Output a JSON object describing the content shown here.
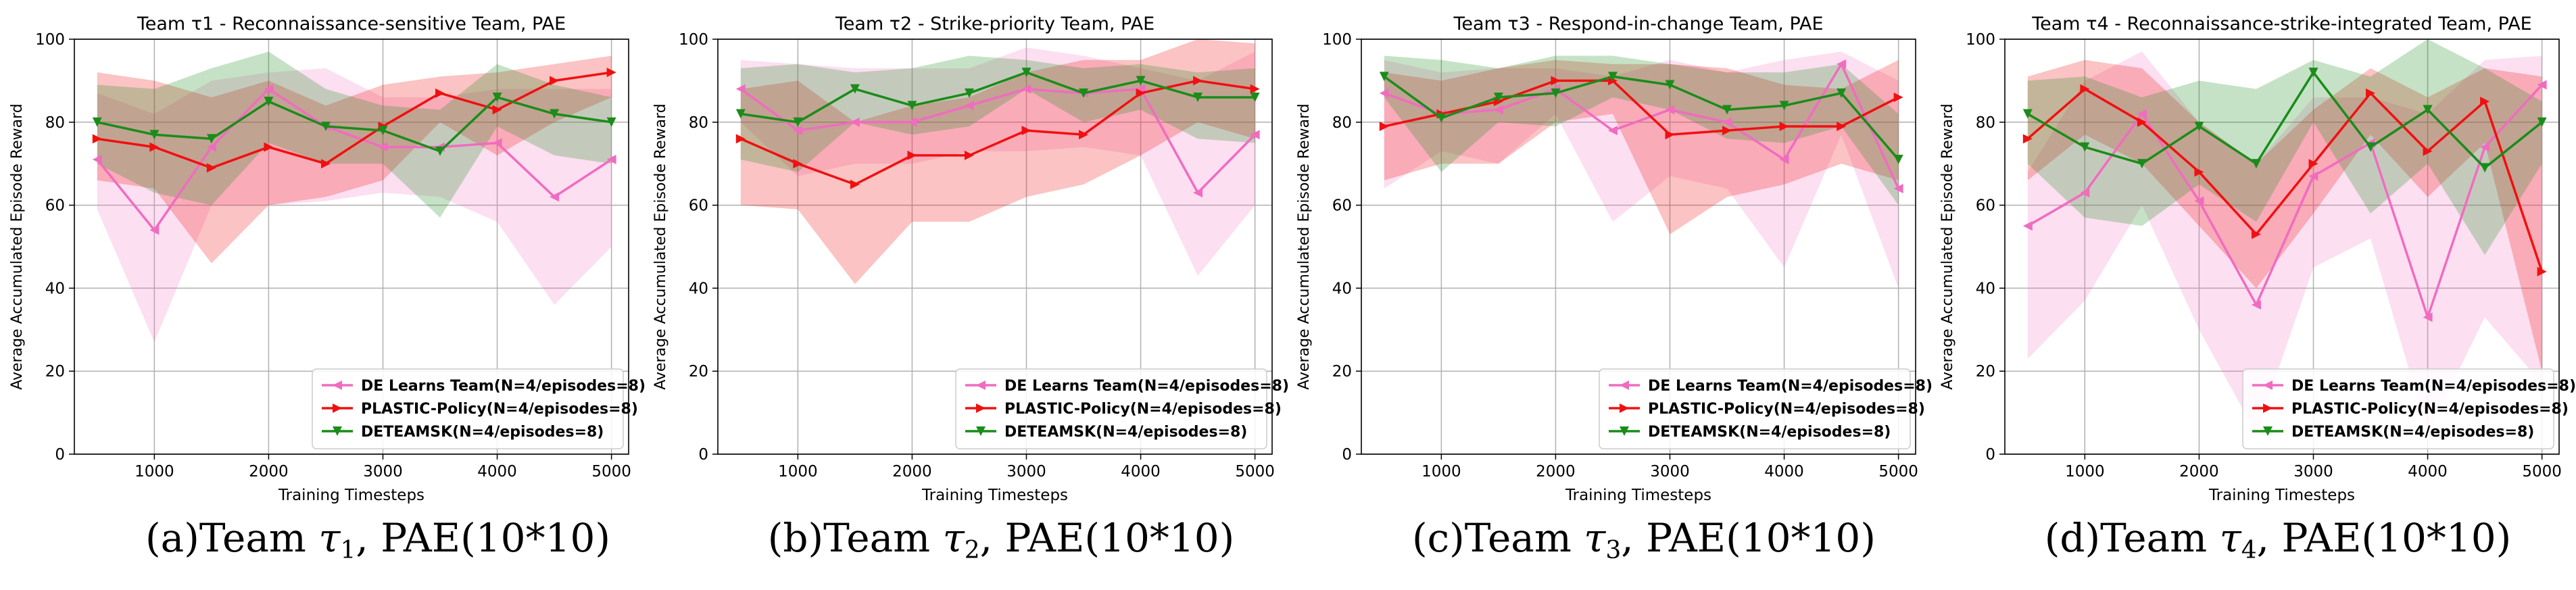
{
  "colors": {
    "de": "#f06cc0",
    "plastic": "#f01010",
    "deteamsk": "#1a8c1a"
  },
  "legend_labels": [
    "DE Learns Team(N=4/episodes=8)",
    "PLASTIC-Policy(N=4/episodes=8)",
    "DETEAMSK(N=4/episodes=8)"
  ],
  "chart_data": [
    {
      "type": "line",
      "title": "Team τ1 - Reconnaissance-sensitive Team, PAE",
      "xlabel": "Training Timesteps",
      "ylabel": "Average Accumulated Episode Reward",
      "xlim": [
        300,
        5150
      ],
      "ylim": [
        0,
        100
      ],
      "xticks": [
        1000,
        2000,
        3000,
        4000,
        5000
      ],
      "yticks": [
        0,
        20,
        40,
        60,
        80,
        100
      ],
      "grid": true,
      "legend": "bottom-right",
      "caption": {
        "prefix": "(a)Team ",
        "tau": "τ",
        "sub": "1",
        "suffix": ", PAE(10*10)"
      },
      "x": [
        500,
        1000,
        1500,
        2000,
        2500,
        3000,
        3500,
        4000,
        4500,
        5000
      ],
      "series": [
        {
          "name": "DE Learns Team(N=4/episodes=8)",
          "marker": "left",
          "values": [
            71,
            54,
            74,
            88,
            79,
            74,
            74,
            75,
            62,
            71
          ],
          "upper": [
            87,
            82,
            90,
            92,
            93,
            86,
            86,
            88,
            88,
            88
          ],
          "lower": [
            59,
            27,
            60,
            60,
            61,
            63,
            62,
            56,
            36,
            50
          ]
        },
        {
          "name": "PLASTIC-Policy(N=4/episodes=8)",
          "marker": "right",
          "values": [
            76,
            74,
            69,
            74,
            70,
            79,
            87,
            83,
            90,
            92
          ],
          "upper": [
            92,
            90,
            86,
            90,
            84,
            89,
            91,
            92,
            94,
            96
          ],
          "lower": [
            66,
            64,
            46,
            60,
            62,
            66,
            80,
            72,
            80,
            86
          ]
        },
        {
          "name": "DETEAMSK(N=4/episodes=8)",
          "marker": "down",
          "values": [
            80,
            77,
            76,
            85,
            79,
            78,
            73,
            86,
            82,
            80
          ],
          "upper": [
            89,
            88,
            93,
            97,
            88,
            84,
            83,
            94,
            89,
            86
          ],
          "lower": [
            70,
            63,
            60,
            75,
            70,
            70,
            57,
            79,
            72,
            70
          ]
        }
      ]
    },
    {
      "type": "line",
      "title": "Team τ2 - Strike-priority Team, PAE",
      "xlabel": "Training Timesteps",
      "ylabel": "Average Accumulated Episode Reward",
      "xlim": [
        300,
        5150
      ],
      "ylim": [
        0,
        100
      ],
      "xticks": [
        1000,
        2000,
        3000,
        4000,
        5000
      ],
      "yticks": [
        0,
        20,
        40,
        60,
        80,
        100
      ],
      "grid": true,
      "legend": "bottom-right",
      "caption": {
        "prefix": "(b)Team ",
        "tau": "τ",
        "sub": "2",
        "suffix": ", PAE(10*10)"
      },
      "x": [
        500,
        1000,
        1500,
        2000,
        2500,
        3000,
        3500,
        4000,
        4500,
        5000
      ],
      "series": [
        {
          "name": "DE Learns Team(N=4/episodes=8)",
          "marker": "left",
          "values": [
            88,
            78,
            80,
            80,
            84,
            88,
            87,
            88,
            63,
            77
          ],
          "upper": [
            95,
            94,
            93,
            93,
            93,
            98,
            96,
            93,
            90,
            97
          ],
          "lower": [
            80,
            67,
            70,
            70,
            73,
            73,
            74,
            72,
            43,
            60
          ]
        },
        {
          "name": "PLASTIC-Policy(N=4/episodes=8)",
          "marker": "right",
          "values": [
            76,
            70,
            65,
            72,
            72,
            78,
            77,
            87,
            90,
            88
          ],
          "upper": [
            88,
            90,
            80,
            84,
            86,
            92,
            95,
            95,
            100,
            99
          ],
          "lower": [
            60,
            59,
            41,
            56,
            56,
            62,
            65,
            72,
            80,
            76
          ]
        },
        {
          "name": "DETEAMSK(N=4/episodes=8)",
          "marker": "down",
          "values": [
            82,
            80,
            88,
            84,
            87,
            92,
            87,
            90,
            86,
            86
          ],
          "upper": [
            93,
            94,
            92,
            93,
            96,
            95,
            93,
            94,
            92,
            93
          ],
          "lower": [
            71,
            68,
            80,
            77,
            79,
            88,
            80,
            83,
            76,
            75
          ]
        }
      ]
    },
    {
      "type": "line",
      "title": "Team τ3 - Respond-in-change Team, PAE",
      "xlabel": "Training Timesteps",
      "ylabel": "Average Accumulated Episode Reward",
      "xlim": [
        300,
        5150
      ],
      "ylim": [
        0,
        100
      ],
      "xticks": [
        1000,
        2000,
        3000,
        4000,
        5000
      ],
      "yticks": [
        0,
        20,
        40,
        60,
        80,
        100
      ],
      "grid": true,
      "legend": "bottom-right",
      "caption": {
        "prefix": "(c)Team ",
        "tau": "τ",
        "sub": "3",
        "suffix": ", PAE(10*10)"
      },
      "x": [
        500,
        1000,
        1500,
        2000,
        2500,
        3000,
        3500,
        4000,
        4500,
        5000
      ],
      "series": [
        {
          "name": "DE Learns Team(N=4/episodes=8)",
          "marker": "left",
          "values": [
            87,
            82,
            83,
            88,
            78,
            83,
            80,
            71,
            94,
            64
          ],
          "upper": [
            95,
            92,
            93,
            93,
            91,
            95,
            92,
            95,
            97,
            90
          ],
          "lower": [
            64,
            73,
            70,
            82,
            56,
            67,
            64,
            45,
            77,
            40
          ]
        },
        {
          "name": "PLASTIC-Policy(N=4/episodes=8)",
          "marker": "right",
          "values": [
            79,
            82,
            85,
            90,
            90,
            77,
            78,
            79,
            79,
            86
          ],
          "upper": [
            92,
            90,
            93,
            95,
            94,
            94,
            93,
            89,
            88,
            95
          ],
          "lower": [
            66,
            70,
            70,
            80,
            82,
            53,
            62,
            65,
            70,
            66
          ]
        },
        {
          "name": "DETEAMSK(N=4/episodes=8)",
          "marker": "down",
          "values": [
            91,
            81,
            86,
            87,
            91,
            89,
            83,
            84,
            87,
            71
          ],
          "upper": [
            96,
            95,
            93,
            96,
            96,
            94,
            92,
            92,
            94,
            82
          ],
          "lower": [
            86,
            68,
            80,
            79,
            86,
            83,
            76,
            75,
            79,
            60
          ]
        }
      ]
    },
    {
      "type": "line",
      "title": "Team τ4 - Reconnaissance-strike-integrated Team, PAE",
      "xlabel": "Training Timesteps",
      "ylabel": "Average Accumulated Episode Reward",
      "xlim": [
        300,
        5150
      ],
      "ylim": [
        0,
        100
      ],
      "xticks": [
        1000,
        2000,
        3000,
        4000,
        5000
      ],
      "yticks": [
        0,
        20,
        40,
        60,
        80,
        100
      ],
      "grid": true,
      "legend": "bottom-right",
      "caption": {
        "prefix": "(d)Team ",
        "tau": "τ",
        "sub": "4",
        "suffix": ", PAE(10*10)"
      },
      "x": [
        500,
        1000,
        1500,
        2000,
        2500,
        3000,
        3500,
        4000,
        4500,
        5000
      ],
      "series": [
        {
          "name": "DE Learns Team(N=4/episodes=8)",
          "marker": "left",
          "values": [
            55,
            63,
            82,
            61,
            36,
            67,
            75,
            33,
            74,
            89
          ],
          "upper": [
            68,
            90,
            97,
            80,
            70,
            86,
            86,
            82,
            95,
            96
          ],
          "lower": [
            23,
            37,
            60,
            30,
            5,
            45,
            52,
            5,
            33,
            17
          ]
        },
        {
          "name": "PLASTIC-Policy(N=4/episodes=8)",
          "marker": "right",
          "values": [
            76,
            88,
            80,
            68,
            53,
            70,
            87,
            73,
            85,
            44
          ],
          "upper": [
            91,
            95,
            93,
            80,
            70,
            83,
            93,
            86,
            93,
            91
          ],
          "lower": [
            66,
            77,
            70,
            55,
            40,
            58,
            77,
            62,
            75,
            20
          ]
        },
        {
          "name": "DETEAMSK(N=4/episodes=8)",
          "marker": "down",
          "values": [
            82,
            74,
            70,
            79,
            70,
            92,
            74,
            83,
            69,
            80
          ],
          "upper": [
            90,
            91,
            86,
            90,
            88,
            95,
            91,
            100,
            93,
            85
          ],
          "lower": [
            70,
            57,
            55,
            65,
            56,
            80,
            58,
            70,
            48,
            70
          ]
        }
      ]
    }
  ]
}
